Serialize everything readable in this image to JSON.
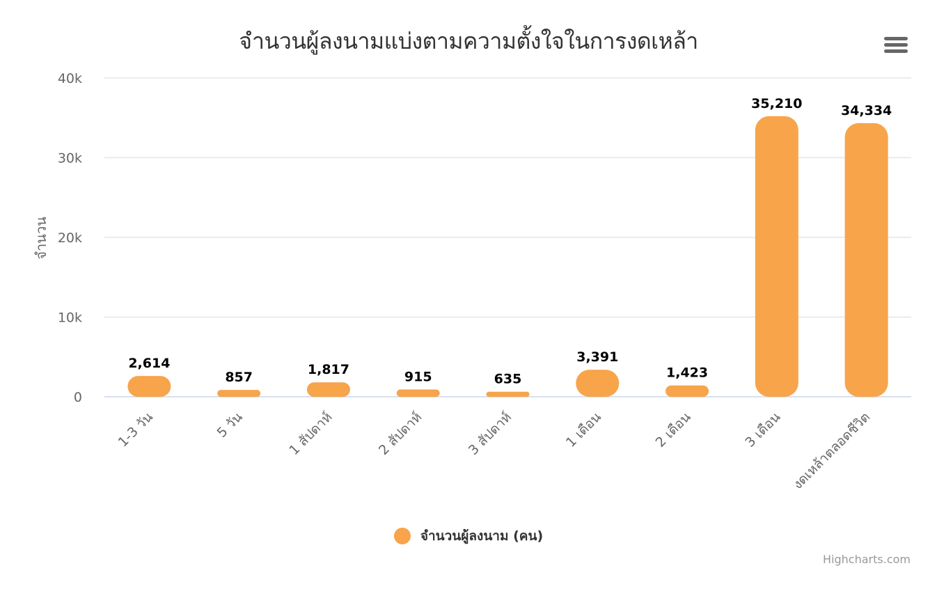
{
  "chart_data": {
    "type": "bar",
    "title": "จำนวนผู้ลงนามแบ่งตามความตั้งใจในการงดเหล้า",
    "ylabel": "จำนวน",
    "xlabel": "",
    "categories": [
      "1-3 วัน",
      "5 วัน",
      "1 สัปดาห์",
      "2 สัปดาห์",
      "3 สัปดาห์",
      "1 เดือน",
      "2 เดือน",
      "3 เดือน",
      "งดเหล้าตลอดชีวิต"
    ],
    "series": [
      {
        "name": "จำนวนผู้ลงนาม (คน)",
        "color": "#f7a44b",
        "values": [
          2614,
          857,
          1817,
          915,
          635,
          3391,
          1423,
          35210,
          34334
        ],
        "value_labels": [
          "2,614",
          "857",
          "1,817",
          "915",
          "635",
          "3,391",
          "1,423",
          "35,210",
          "34,334"
        ]
      }
    ],
    "ylim": [
      0,
      40000
    ],
    "yticks": [
      0,
      10000,
      20000,
      30000,
      40000
    ],
    "ytick_labels": [
      "0",
      "10k",
      "20k",
      "30k",
      "40k"
    ],
    "grid": true,
    "legend_position": "bottom-center",
    "credits": "Highcharts.com"
  },
  "menu_icon": "hamburger-menu-icon"
}
